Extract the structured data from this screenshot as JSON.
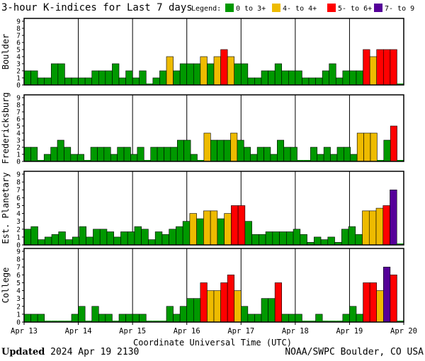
{
  "colors": {
    "quiet": "#009900",
    "active": "#eebb00",
    "storm": "#ff0000",
    "severe": "#550099",
    "frame": "#000000"
  },
  "footer": {
    "updated_label": "Updated",
    "updated_time": "2024 Apr 19 2130",
    "credit": "NOAA/SWPC Boulder, CO USA"
  },
  "chart_data": {
    "type": "bar",
    "title": "3-hour K-indices for Last 7 days",
    "xlabel": "Coordinate Universal Time (UTC)",
    "legend": {
      "label": "Legend:",
      "position": "top-right",
      "items": [
        {
          "label": "0 to 3+",
          "color": "#009900"
        },
        {
          "label": "4- to 4+",
          "color": "#eebb00"
        },
        {
          "label": "5- to 6+",
          "color": "#ff0000"
        },
        {
          "label": "7- to 9",
          "color": "#550099"
        }
      ]
    },
    "x_ticks": [
      "Apr 13",
      "Apr 14",
      "Apr 15",
      "Apr 16",
      "Apr 17",
      "Apr 18",
      "Apr 19",
      "Apr 20"
    ],
    "ylim": [
      0,
      9
    ],
    "y_ticks": [
      "0",
      "1",
      "2",
      "3",
      "4",
      "5",
      "6",
      "7",
      "8",
      "9"
    ],
    "bars_per_day": 8,
    "panels": [
      {
        "name": "Boulder",
        "values": [
          2,
          2,
          1,
          1,
          3,
          3,
          1,
          1,
          1,
          1,
          2,
          2,
          2,
          3,
          1,
          2,
          1,
          2,
          0,
          1,
          2,
          4,
          2,
          3,
          3,
          3,
          4,
          3,
          4,
          5,
          4,
          3,
          3,
          1,
          1,
          2,
          2,
          3,
          2,
          2,
          2,
          1,
          1,
          1,
          2,
          3,
          1,
          2,
          2,
          2,
          5,
          4,
          5,
          5,
          5,
          0
        ]
      },
      {
        "name": "Fredericksburg",
        "values": [
          2,
          2,
          0,
          1,
          2,
          3,
          2,
          1,
          1,
          0,
          2,
          2,
          2,
          1,
          2,
          2,
          1,
          2,
          0,
          2,
          2,
          2,
          2,
          3,
          3,
          1,
          0,
          4,
          3,
          3,
          3,
          4,
          3,
          2,
          1,
          2,
          2,
          1,
          3,
          2,
          2,
          0,
          0,
          2,
          1,
          2,
          1,
          2,
          2,
          1,
          4,
          4,
          4,
          0,
          3,
          5,
          0
        ]
      },
      {
        "name": "Est. Planetary",
        "values": [
          2,
          2.33,
          0.67,
          1,
          1.33,
          1.67,
          0.67,
          1,
          2.33,
          1,
          2,
          2,
          1.67,
          1,
          1.67,
          1.67,
          2.33,
          2,
          0.67,
          1.67,
          1.33,
          2,
          2.33,
          3,
          4,
          3.33,
          4.33,
          4.33,
          3.33,
          4,
          5,
          5,
          3,
          1.33,
          1.33,
          1.67,
          1.67,
          1.67,
          1.67,
          2,
          1.33,
          0.33,
          1,
          0.67,
          1,
          0.33,
          2,
          2.33,
          1.33,
          4.33,
          4.33,
          4.67,
          5,
          7,
          0
        ]
      },
      {
        "name": "College",
        "values": [
          1,
          1,
          1,
          0,
          0,
          0,
          0,
          1,
          2,
          0,
          2,
          1,
          1,
          0,
          1,
          1,
          1,
          1,
          0,
          0,
          0,
          2,
          1,
          2,
          3,
          3,
          5,
          4,
          4,
          5,
          6,
          4,
          2,
          1,
          1,
          3,
          3,
          5,
          1,
          1,
          1,
          0,
          0,
          1,
          0,
          0,
          0,
          1,
          2,
          1,
          5,
          5,
          4,
          7,
          6,
          0
        ]
      }
    ]
  }
}
